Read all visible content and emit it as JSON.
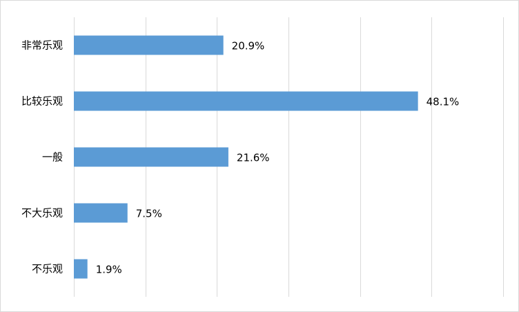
{
  "chart_data": {
    "type": "bar",
    "orientation": "horizontal",
    "categories": [
      "非常乐观",
      "比较乐观",
      "一般",
      "不大乐观",
      "不乐观"
    ],
    "values": [
      20.9,
      48.1,
      21.6,
      7.5,
      1.9
    ],
    "value_labels": [
      "20.9%",
      "48.1%",
      "21.6%",
      "7.5%",
      "1.9%"
    ],
    "unit": "%",
    "xlim": [
      0,
      60
    ],
    "x_gridline_step": 10,
    "grid": true,
    "legend": "none",
    "bar_color": "#5b9bd5",
    "gridline_color": "#d9d9d9"
  }
}
